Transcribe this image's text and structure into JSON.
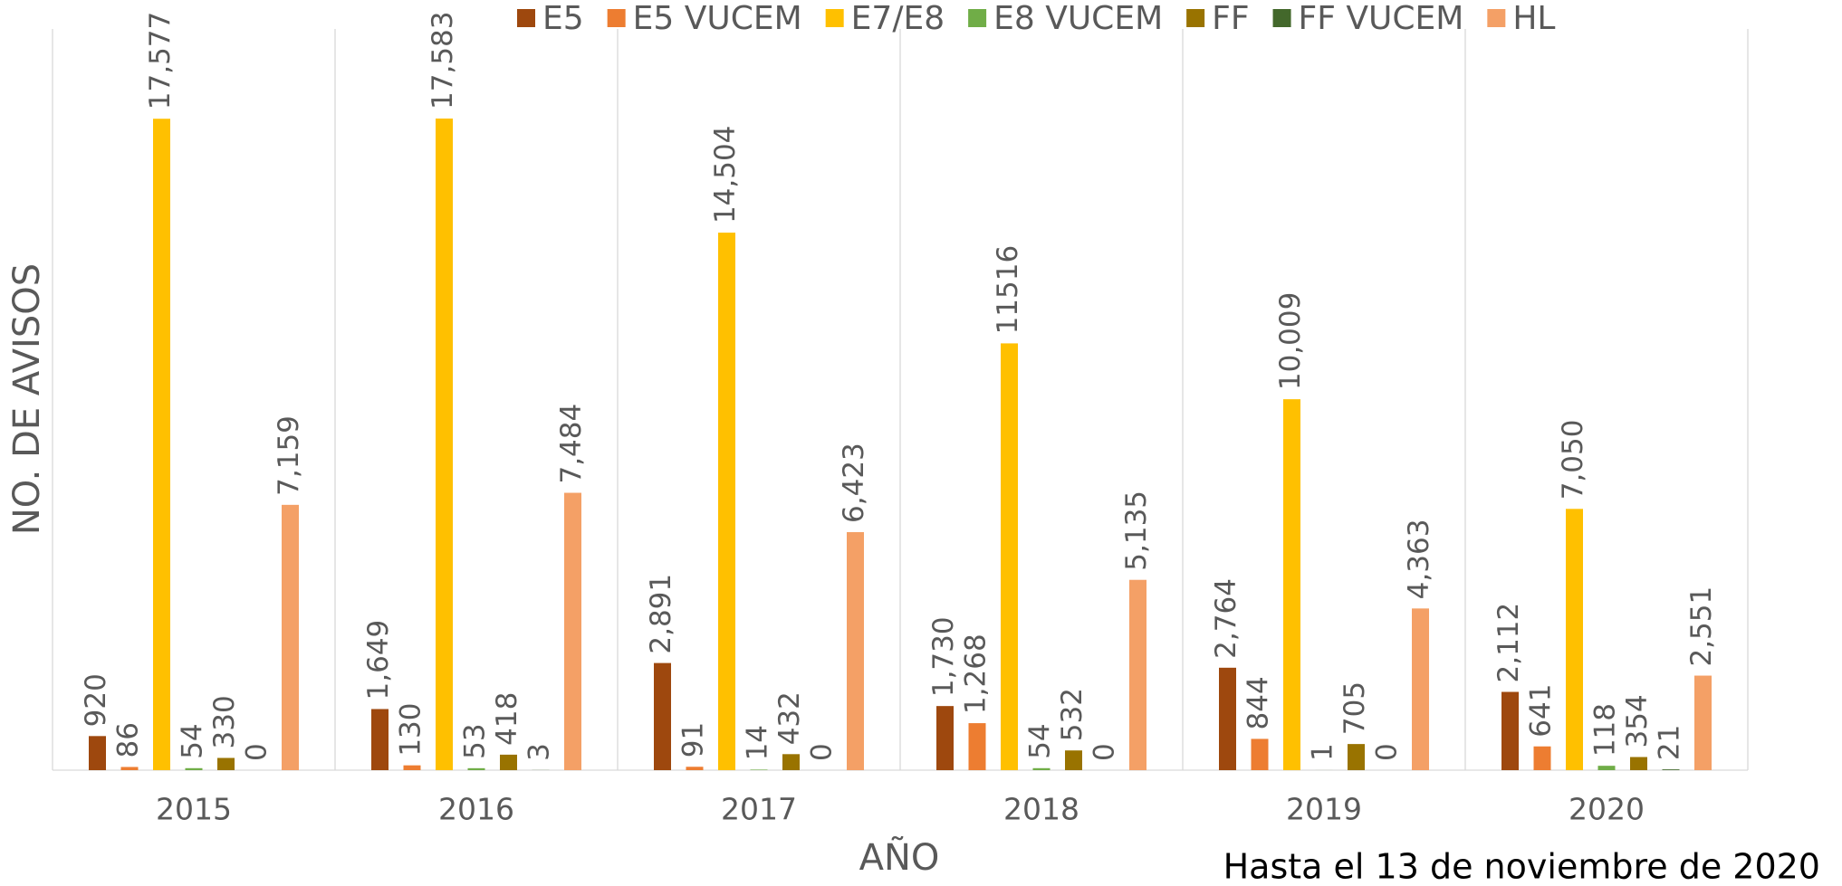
{
  "chart_data": {
    "type": "bar",
    "categories": [
      "2015",
      "2016",
      "2017",
      "2018",
      "2019",
      "2020"
    ],
    "series": [
      {
        "name": "E5",
        "color": "#9e480e",
        "values": [
          920,
          1649,
          2891,
          1730,
          2764,
          2112
        ],
        "value_labels": [
          "920",
          "1,649",
          "2,891",
          "1,730",
          "2,764",
          "2,112"
        ]
      },
      {
        "name": "E5 VUCEM",
        "color": "#ed7d31",
        "values": [
          86,
          130,
          91,
          1268,
          844,
          641
        ],
        "value_labels": [
          "86",
          "130",
          "91",
          "1,268",
          "844",
          "641"
        ]
      },
      {
        "name": "E7/E8",
        "color": "#ffc000",
        "values": [
          17577,
          17583,
          14504,
          11516,
          10009,
          7050
        ],
        "value_labels": [
          "17,577",
          "17,583",
          "14,504",
          "11516",
          "10,009",
          "7,050"
        ]
      },
      {
        "name": "E8 VUCEM",
        "color": "#70ad47",
        "values": [
          54,
          53,
          14,
          54,
          1,
          118
        ],
        "value_labels": [
          "54",
          "53",
          "14",
          "54",
          "1",
          "118"
        ]
      },
      {
        "name": "FF",
        "color": "#997300",
        "values": [
          330,
          418,
          432,
          532,
          705,
          354
        ],
        "value_labels": [
          "330",
          "418",
          "432",
          "532",
          "705",
          "354"
        ]
      },
      {
        "name": "FF VUCEM",
        "color": "#43682b",
        "values": [
          0,
          3,
          0,
          0,
          0,
          21
        ],
        "value_labels": [
          "0",
          "3",
          "0",
          "0",
          "0",
          "21"
        ]
      },
      {
        "name": "HL",
        "color": "#f4a066",
        "values": [
          7159,
          7484,
          6423,
          5135,
          4363,
          2551
        ],
        "value_labels": [
          "7,159",
          "7,484",
          "6,423",
          "5,135",
          "4,363",
          "2,551"
        ]
      }
    ],
    "ylim": [
      0,
      20000
    ],
    "y_label": "NO. DE AVISOS",
    "x_label": "AÑO",
    "annotation": "Hasta el 13 de noviembre de 2020",
    "legend": "top"
  }
}
